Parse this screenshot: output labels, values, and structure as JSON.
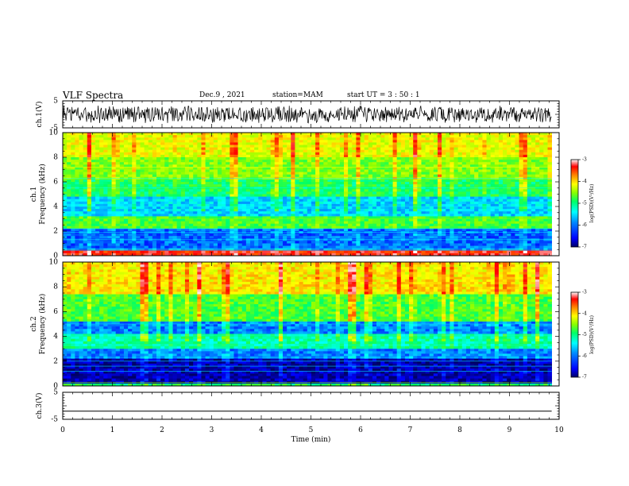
{
  "header": {
    "title": "VLF Spectra",
    "date": "Dec.9 , 2021",
    "station": "station=MAM",
    "start": "start UT = 3 : 50 : 1"
  },
  "chart_data": [
    {
      "type": "line",
      "panel": "ch1-waveform",
      "ylabel": "ch.1(V)",
      "yticks": [
        "5",
        "-5"
      ],
      "ylim": [
        -5,
        5
      ],
      "xlim": [
        0,
        10
      ],
      "note": "dense broadband noise waveform, amplitude approx ±3 V, spanning 0–9.85 min"
    },
    {
      "type": "heatmap",
      "panel": "ch1-spectrogram",
      "ylabel": "ch.1\nFrequency (kHz)",
      "yticks": [
        "0",
        "2",
        "4",
        "6",
        "8",
        "10"
      ],
      "ylim": [
        0,
        10
      ],
      "xlim": [
        0,
        10
      ],
      "colorbar": {
        "label": "log(PSD)(V²/Hz)",
        "range": [
          -7,
          -3
        ],
        "ticks": [
          "-3",
          "-4",
          "-5",
          "-6",
          "-7"
        ]
      }
    },
    {
      "type": "heatmap",
      "panel": "ch2-spectrogram",
      "ylabel": "ch.2\nFrequency (kHz)",
      "yticks": [
        "0",
        "2",
        "4",
        "6",
        "8",
        "10"
      ],
      "ylim": [
        0,
        10
      ],
      "xlim": [
        0,
        10
      ],
      "colorbar": {
        "label": "log(PSD)(V²/Hz)",
        "range": [
          -7,
          -3
        ],
        "ticks": [
          "-3",
          "-4",
          "-5",
          "-6",
          "-7"
        ]
      }
    },
    {
      "type": "line",
      "panel": "ch3-waveform",
      "ylabel": "ch.3(V)",
      "yticks": [
        "5",
        "-5"
      ],
      "ylim": [
        -5,
        5
      ],
      "xlim": [
        0,
        10
      ],
      "series": [
        {
          "x": [
            0,
            9.85
          ],
          "values": [
            -2,
            -2
          ]
        }
      ]
    }
  ],
  "xaxis": {
    "label": "Time (min)",
    "ticks": [
      "0",
      "1",
      "2",
      "3",
      "4",
      "5",
      "6",
      "7",
      "8",
      "9",
      "10"
    ]
  },
  "colors": {
    "colormap": [
      "#000066",
      "#0000ff",
      "#0088ff",
      "#00ffff",
      "#00ff66",
      "#88ff00",
      "#ffff00",
      "#ff8800",
      "#ff0000",
      "#ffffff"
    ]
  }
}
